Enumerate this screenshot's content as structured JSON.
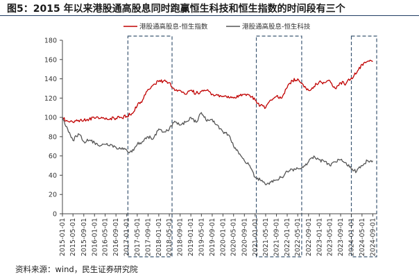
{
  "title": "图5：2015 年以来港股通高股息同时跑赢恒生科技和恒生指数的时间段有三个",
  "source": "资料来源：wind，民生证券研究院",
  "chart_data": {
    "type": "line",
    "ylim": [
      0,
      180
    ],
    "y_ticks": [
      0,
      20,
      40,
      60,
      80,
      100,
      120,
      140,
      160,
      180
    ],
    "x_tick_labels": [
      "2015-01-01",
      "2015-05-01",
      "2015-09-01",
      "2016-01-01",
      "2016-05-01",
      "2016-09-01",
      "2017-01-01",
      "2017-05-01",
      "2017-09-01",
      "2018-01-01",
      "2018-05-01",
      "2018-09-01",
      "2019-01-01",
      "2019-05-01",
      "2019-09-01",
      "2020-01-01",
      "2020-05-01",
      "2020-09-01",
      "2021-01-01",
      "2021-05-01",
      "2021-09-01",
      "2022-01-01",
      "2022-05-01",
      "2022-09-01",
      "2023-01-01",
      "2023-05-01",
      "2023-09-01",
      "2024-01-01",
      "2024-05-01",
      "2024-09-01"
    ],
    "legend_placement": "top-center",
    "grid": false,
    "series": [
      {
        "name": "港股通高股息-恒生指数",
        "color": "#c00000",
        "x": [
          "2015-01-01",
          "2015-03-01",
          "2015-05-01",
          "2015-07-01",
          "2015-09-01",
          "2015-11-01",
          "2016-01-01",
          "2016-03-01",
          "2016-05-01",
          "2016-07-01",
          "2016-09-01",
          "2016-11-01",
          "2017-01-01",
          "2017-03-01",
          "2017-05-01",
          "2017-07-01",
          "2017-09-01",
          "2017-11-01",
          "2018-01-01",
          "2018-03-01",
          "2018-05-01",
          "2018-07-01",
          "2018-09-01",
          "2018-11-01",
          "2019-01-01",
          "2019-03-01",
          "2019-05-01",
          "2019-07-01",
          "2019-09-01",
          "2019-11-01",
          "2020-01-01",
          "2020-03-01",
          "2020-05-01",
          "2020-07-01",
          "2020-09-01",
          "2020-11-01",
          "2021-01-01",
          "2021-03-01",
          "2021-05-01",
          "2021-07-01",
          "2021-09-01",
          "2021-11-01",
          "2022-01-01",
          "2022-03-01",
          "2022-05-01",
          "2022-07-01",
          "2022-09-01",
          "2022-11-01",
          "2023-01-01",
          "2023-03-01",
          "2023-05-01",
          "2023-07-01",
          "2023-09-01",
          "2023-11-01",
          "2024-01-01",
          "2024-03-01",
          "2024-05-01",
          "2024-07-01",
          "2024-09-01"
        ],
        "values": [
          100,
          96,
          95,
          97,
          97,
          98,
          99,
          99,
          98,
          99,
          99,
          100,
          101,
          104,
          112,
          118,
          129,
          134,
          137,
          138,
          136,
          128,
          128,
          124,
          128,
          125,
          127,
          128,
          124,
          123,
          122,
          122,
          120,
          123,
          124,
          123,
          118,
          112,
          110,
          118,
          122,
          120,
          131,
          138,
          140,
          134,
          128,
          132,
          137,
          136,
          138,
          130,
          136,
          135,
          141,
          146,
          155,
          158,
          158
        ]
      },
      {
        "name": "港股通高股息-恒生科技",
        "color": "#555555",
        "x": [
          "2015-01-01",
          "2015-03-01",
          "2015-05-01",
          "2015-07-01",
          "2015-09-01",
          "2015-11-01",
          "2016-01-01",
          "2016-03-01",
          "2016-05-01",
          "2016-07-01",
          "2016-09-01",
          "2016-11-01",
          "2017-01-01",
          "2017-03-01",
          "2017-05-01",
          "2017-07-01",
          "2017-09-01",
          "2017-11-01",
          "2018-01-01",
          "2018-03-01",
          "2018-05-01",
          "2018-07-01",
          "2018-09-01",
          "2018-11-01",
          "2019-01-01",
          "2019-03-01",
          "2019-05-01",
          "2019-07-01",
          "2019-09-01",
          "2019-11-01",
          "2020-01-01",
          "2020-03-01",
          "2020-05-01",
          "2020-07-01",
          "2020-09-01",
          "2020-11-01",
          "2021-01-01",
          "2021-03-01",
          "2021-05-01",
          "2021-07-01",
          "2021-09-01",
          "2021-11-01",
          "2022-01-01",
          "2022-03-01",
          "2022-05-01",
          "2022-07-01",
          "2022-09-01",
          "2022-11-01",
          "2023-01-01",
          "2023-03-01",
          "2023-05-01",
          "2023-07-01",
          "2023-09-01",
          "2023-11-01",
          "2024-01-01",
          "2024-03-01",
          "2024-05-01",
          "2024-07-01",
          "2024-09-01"
        ],
        "values": [
          100,
          88,
          76,
          83,
          75,
          76,
          74,
          70,
          72,
          72,
          69,
          67,
          66,
          64,
          72,
          75,
          80,
          78,
          88,
          85,
          88,
          96,
          92,
          95,
          100,
          95,
          105,
          96,
          98,
          92,
          85,
          82,
          70,
          62,
          55,
          50,
          38,
          35,
          30,
          33,
          35,
          38,
          44,
          46,
          47,
          48,
          54,
          60,
          56,
          54,
          50,
          54,
          56,
          53,
          46,
          44,
          50,
          55,
          55
        ]
      }
    ],
    "highlight_ranges": [
      [
        "2017-01-15",
        "2018-06-01"
      ],
      [
        "2021-01-15",
        "2022-06-15"
      ],
      [
        "2024-01-01",
        "2024-10-15"
      ]
    ]
  }
}
